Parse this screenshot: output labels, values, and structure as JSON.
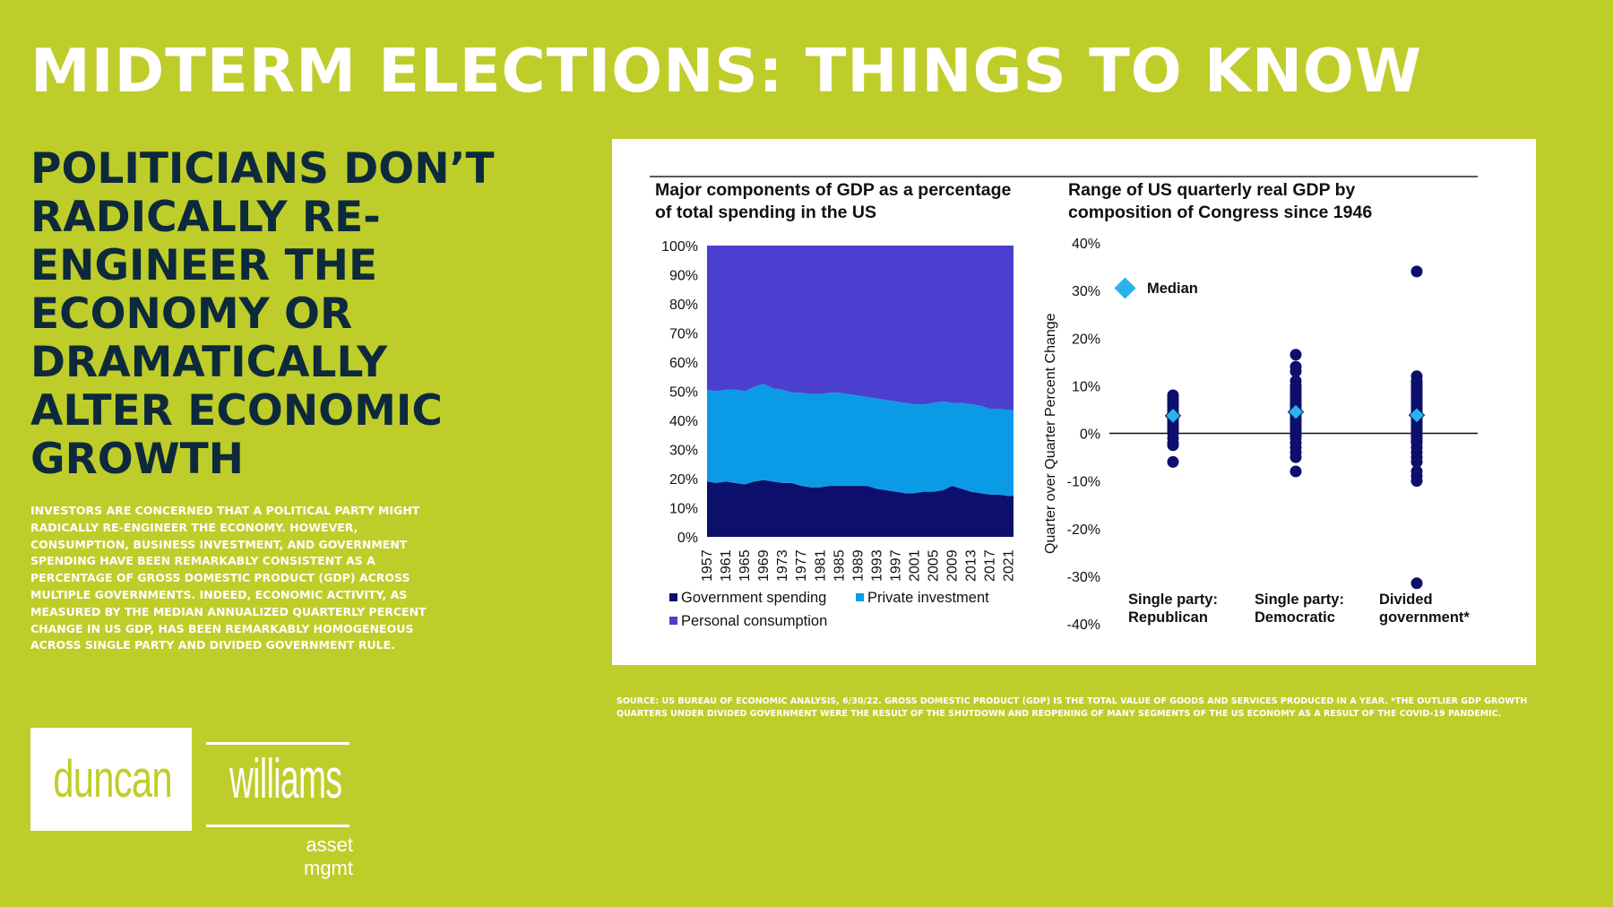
{
  "header": {
    "title": "MIDTERM ELECTIONS: THINGS TO KNOW"
  },
  "headline": "POLITICIANS DON’T RADICALLY RE-ENGINEER THE ECONOMY OR DRAMATICALLY ALTER ECONOMIC GROWTH",
  "body_text": "INVESTORS ARE CONCERNED THAT A POLITICAL PARTY MIGHT RADICALLY RE-ENGINEER THE ECONOMY. HOWEVER, CONSUMPTION, BUSINESS INVESTMENT, AND GOVERNMENT SPENDING HAVE BEEN REMARKABLY CONSISTENT AS A PERCENTAGE OF GROSS DOMESTIC PRODUCT (GDP) ACROSS MULTIPLE GOVERNMENTS. INDEED, ECONOMIC ACTIVITY, AS MEASURED BY THE MEDIAN ANNUALIZED QUARTERLY PERCENT CHANGE IN US GDP, HAS BEEN REMARKABLY HOMOGENEOUS ACROSS SINGLE PARTY AND DIVIDED GOVERNMENT RULE.",
  "source_note": "SOURCE: US BUREAU OF ECONOMIC ANALYSIS, 6/30/22. GROSS DOMESTIC PRODUCT (GDP) IS THE TOTAL VALUE OF GOODS AND SERVICES PRODUCED IN A YEAR. *THE OUTLIER GDP GROWTH QUARTERS UNDER DIVIDED GOVERNMENT WERE THE RESULT OF THE SHUTDOWN AND REOPENING OF MANY SEGMENTS OF THE US ECONOMY AS A RESULT OF THE COVID-19 PANDEMIC.",
  "logo": {
    "left": "duncan",
    "right": "williams",
    "sub": "asset mgmt"
  },
  "colors": {
    "background": "#bfcd2a",
    "headline": "#0d2a3c",
    "gov": "#0c0f6b",
    "inv": "#0b9be6",
    "con": "#4b3fcf",
    "dots": "#0c0f6b",
    "median": "#27b4ea"
  },
  "chart_data": [
    {
      "type": "area",
      "stacked": true,
      "title_lines": [
        "Major components of GDP as a percentage",
        "of total spending in the US"
      ],
      "x": [
        1957,
        1959,
        1961,
        1963,
        1965,
        1967,
        1969,
        1971,
        1973,
        1975,
        1977,
        1979,
        1981,
        1983,
        1985,
        1987,
        1989,
        1991,
        1993,
        1995,
        1997,
        1999,
        2001,
        2003,
        2005,
        2007,
        2009,
        2011,
        2013,
        2015,
        2017,
        2019,
        2021,
        2022
      ],
      "x_tick_labels": [
        "1957",
        "1961",
        "1965",
        "1969",
        "1973",
        "1977",
        "1981",
        "1985",
        "1989",
        "1993",
        "1997",
        "2001",
        "2005",
        "2009",
        "2013",
        "2017",
        "2021"
      ],
      "y_ticks": [
        "0%",
        "10%",
        "20%",
        "30%",
        "40%",
        "50%",
        "60%",
        "70%",
        "80%",
        "90%",
        "100%"
      ],
      "ylim": [
        0,
        100
      ],
      "grid": false,
      "legend_position": "bottom",
      "series": [
        {
          "name": "Government spending",
          "color": "#0c0f6b",
          "values": [
            19,
            18.5,
            19,
            18.5,
            18,
            19,
            19.5,
            19,
            18.5,
            18.5,
            17.5,
            17,
            17,
            17.5,
            17.5,
            17.5,
            17.5,
            17.5,
            16.5,
            16,
            15.5,
            15,
            15,
            15.5,
            15.5,
            16,
            17.5,
            16.5,
            15.5,
            15,
            14.5,
            14.5,
            14,
            14
          ]
        },
        {
          "name": "Private investment",
          "color": "#0b9be6",
          "values": [
            31.5,
            31.5,
            31.5,
            32,
            32,
            32.5,
            33,
            32,
            32,
            31,
            32,
            32,
            32,
            32,
            32,
            31.5,
            31,
            30.5,
            31,
            31,
            31,
            31,
            30.5,
            30,
            30.5,
            30.5,
            28.5,
            29.5,
            30,
            30,
            29.5,
            29.5,
            29.5,
            29.5
          ]
        },
        {
          "name": "Personal consumption",
          "color": "#4b3fcf",
          "values": [
            49.5,
            50,
            49.5,
            49.5,
            50,
            48.5,
            47.5,
            49,
            49.5,
            50.5,
            50.5,
            51,
            51,
            50.5,
            50.5,
            51,
            51.5,
            52,
            52.5,
            53,
            53.5,
            54,
            54.5,
            54.5,
            54,
            53.5,
            54,
            54,
            54.5,
            55,
            56,
            56,
            56.5,
            56.5
          ]
        }
      ]
    },
    {
      "type": "scatter",
      "title_lines": [
        "Range of US quarterly real GDP by",
        "composition of Congress since 1946"
      ],
      "ylabel": "Quarter over Quarter Percent Change",
      "y_ticks": [
        "40%",
        "30%",
        "20%",
        "10%",
        "0%",
        "-10%",
        "-20%",
        "-30%",
        "-40%"
      ],
      "ylim": [
        -40,
        40
      ],
      "legend": {
        "label": "Median",
        "position": "top-left"
      },
      "categories": [
        {
          "label_lines": [
            "Single party:",
            "Republican"
          ],
          "values": [
            8,
            7.5,
            7,
            6.5,
            6,
            5.5,
            5,
            4.5,
            4,
            3.5,
            3,
            2.5,
            2,
            1.5,
            1,
            0.5,
            0,
            -1,
            -2,
            -2.5,
            -6
          ],
          "median": 3.7
        },
        {
          "label_lines": [
            "Single party:",
            "Democratic"
          ],
          "values": [
            16.5,
            14,
            13,
            11,
            10,
            9.5,
            9,
            8.5,
            8,
            7.5,
            7,
            6.5,
            6,
            5.5,
            5,
            4.5,
            4,
            3.5,
            3,
            2.5,
            2,
            1.5,
            1,
            0.5,
            0,
            -0.5,
            -1,
            -2,
            -3,
            -4,
            -5,
            -8
          ],
          "median": 4.5
        },
        {
          "label_lines": [
            "Divided",
            "government*"
          ],
          "values": [
            34,
            12,
            11,
            10.5,
            10,
            9.5,
            9,
            8.5,
            8,
            7.5,
            7,
            6.5,
            6,
            5.5,
            5,
            4.5,
            4,
            3.5,
            3,
            2.5,
            2,
            1.5,
            1,
            0.5,
            0,
            -0.5,
            -1,
            -1.5,
            -2,
            -3,
            -4,
            -5,
            -6,
            -8,
            -9,
            -10,
            -31.5
          ],
          "median": 3.8
        }
      ]
    }
  ]
}
